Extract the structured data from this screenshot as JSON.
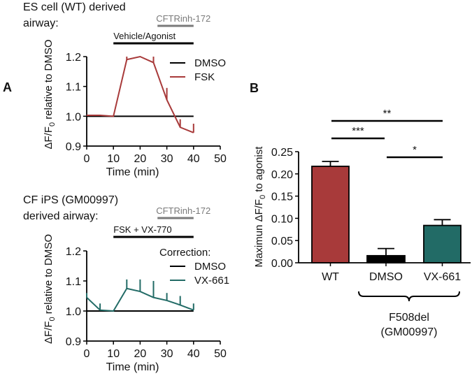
{
  "colors": {
    "wt": "#a83a3a",
    "dmso": "#000000",
    "vx661": "#226b66",
    "inhibitor": "#7a7a7a"
  },
  "chart_data": [
    {
      "type": "line",
      "panel_label": "A",
      "title_lines": [
        "ES cell (WT) derived",
        "airway:"
      ],
      "treatment_bars": [
        {
          "label": "CFTRinh-172",
          "range": [
            26.5,
            40
          ],
          "color": "#7a7a7a"
        },
        {
          "label": "Vehicle/Agonist",
          "range": [
            10,
            40
          ],
          "color": "#000000"
        }
      ],
      "xlabel": "Time (min)",
      "ylabel": "ΔF/F0 relative to DMSO",
      "xlim": [
        0,
        50
      ],
      "ylim": [
        0.9,
        1.2
      ],
      "xticks": [
        "0",
        "10",
        "20",
        "30",
        "40",
        "50"
      ],
      "yticks": [
        "0.9",
        "1.0",
        "1.1",
        "1.2"
      ],
      "legend_title": "",
      "legend_placement": "top-right",
      "x": [
        0,
        5,
        10,
        15,
        20,
        25,
        30,
        35,
        40
      ],
      "series": [
        {
          "name": "DMSO",
          "color": "#000000",
          "values": [
            1.0,
            1.0,
            1.0,
            1.0,
            1.0,
            1.0,
            1.0,
            1.0,
            1.0
          ],
          "error_top": null
        },
        {
          "name": "FSK",
          "color": "#a83a3a",
          "values": [
            1.003,
            1.003,
            1.0,
            1.19,
            1.2,
            1.18,
            1.055,
            0.963,
            0.945
          ],
          "error_top": [
            1.004,
            1.005,
            1.0,
            1.2,
            1.2,
            1.2,
            1.095,
            0.99,
            0.975
          ]
        }
      ]
    },
    {
      "type": "line",
      "panel_label": "",
      "title_lines": [
        "CF iPS (GM00997)",
        "derived airway:"
      ],
      "treatment_bars": [
        {
          "label": "CFTRinh-172",
          "range": [
            26.5,
            40
          ],
          "color": "#7a7a7a"
        },
        {
          "label": "FSK + VX-770",
          "range": [
            10,
            40
          ],
          "color": "#000000"
        }
      ],
      "xlabel": "Time (min)",
      "ylabel": "ΔF/F0 relative to DMSO",
      "xlim": [
        0,
        50
      ],
      "ylim": [
        0.9,
        1.2
      ],
      "xticks": [
        "0",
        "10",
        "20",
        "30",
        "40",
        "50"
      ],
      "yticks": [
        "0.9",
        "1.0",
        "1.1",
        "1.2"
      ],
      "legend_title": "Correction:",
      "legend_placement": "top-right",
      "x": [
        0,
        5,
        10,
        15,
        20,
        25,
        30,
        35,
        40
      ],
      "series": [
        {
          "name": "DMSO",
          "color": "#000000",
          "values": [
            1.0,
            1.0,
            1.0,
            1.0,
            1.0,
            1.0,
            1.0,
            1.0,
            1.0
          ],
          "error_top": null
        },
        {
          "name": "VX-661",
          "color": "#226b66",
          "values": [
            1.045,
            1.003,
            1.0,
            1.075,
            1.065,
            1.045,
            1.035,
            1.02,
            1.003
          ],
          "error_top": [
            1.06,
            1.025,
            1.0,
            1.105,
            1.105,
            1.1,
            1.06,
            1.05,
            1.025
          ]
        }
      ]
    },
    {
      "type": "bar",
      "panel_label": "B",
      "categories": [
        "WT",
        "DMSO",
        "VX-661"
      ],
      "values": [
        0.217,
        0.016,
        0.084
      ],
      "error_top": [
        0.228,
        0.032,
        0.097
      ],
      "colors": [
        "#a83a3a",
        "#000000",
        "#226b66"
      ],
      "ylabel": "Maximun ΔF/F0 to agonist",
      "ylim": [
        0,
        0.25
      ],
      "yticks": [
        "0.00",
        "0.05",
        "0.10",
        "0.15",
        "0.20",
        "0.25"
      ],
      "group_label_lines": [
        "F508del",
        "(GM00997)"
      ],
      "significance": [
        {
          "from": "WT",
          "to": "VX-661",
          "label": "**"
        },
        {
          "from": "WT",
          "to": "DMSO",
          "label": "***"
        },
        {
          "from": "DMSO",
          "to": "VX-661",
          "label": "*"
        }
      ]
    }
  ]
}
